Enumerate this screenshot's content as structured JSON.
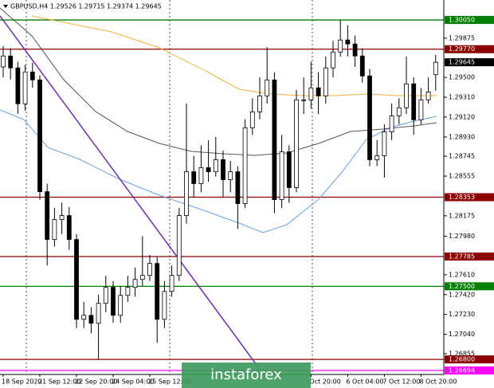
{
  "chart_data": {
    "type": "candlestick",
    "title": "GBPUSD,H4  1.29526  1.29715  1.29374  1.29645",
    "watermark": "instaforex",
    "ylim": [
      1.26656,
      1.30241
    ],
    "yticks": [
      1.29875,
      {
        "value": 1.295,
        "label": "1.29500"
      },
      {
        "value": 1.2931,
        "label": "1.29310"
      },
      {
        "value": 1.2912,
        "label": "1.29120"
      },
      {
        "value": 1.2893,
        "label": "1.28930"
      },
      1.28745,
      1.28555,
      1.28175,
      {
        "value": 1.2798,
        "label": "1.27980"
      },
      {
        "value": 1.2761,
        "label": "1.27610"
      },
      {
        "value": 1.2742,
        "label": "1.27420"
      },
      {
        "value": 1.2723,
        "label": "1.27230"
      },
      {
        "value": 1.2704,
        "label": "1.27040"
      },
      1.26855
    ],
    "levels": [
      {
        "value": 1.3005,
        "label": "1.30050",
        "color": "#008000"
      },
      {
        "value": 1.2977,
        "label": "1.29770",
        "color": "#8b0000"
      },
      {
        "value": 1.28353,
        "label": "1.28353",
        "color": "#8b0000"
      },
      {
        "value": 1.27785,
        "label": "1.27785",
        "color": "#8b0000"
      },
      {
        "value": 1.275,
        "label": "1.27500",
        "color": "#008000"
      },
      {
        "value": 1.268,
        "label": "1.26800",
        "color": "#8b0000"
      },
      {
        "value": 1.26694,
        "label": "1.26694",
        "color": "#ff00ff"
      }
    ],
    "last_label": "1.29645",
    "xlabels": [
      {
        "index": 0,
        "label": "18 Sep 2020"
      },
      {
        "index": 5,
        "label": "21 Sep 12:00"
      },
      {
        "index": 10,
        "label": "22 Sep 20:00"
      },
      {
        "index": 15,
        "label": "24 Sep 04:00"
      },
      {
        "index": 20,
        "label": "25 Sep 12:00"
      },
      {
        "index": 42,
        "label": "Oct 20:00"
      },
      {
        "index": 47,
        "label": "6 Oct 04:00"
      },
      {
        "index": 52,
        "label": "7 Oct 12:00"
      },
      {
        "index": 57,
        "label": "8 Oct 20:00"
      }
    ],
    "open": [
      1.296,
      1.29705,
      1.29591,
      1.29247,
      1.29552,
      1.29476,
      1.28406,
      1.27948,
      1.28139,
      1.28177,
      1.27948,
      1.27184,
      1.27222,
      1.27146,
      1.27337,
      1.2749,
      1.27222,
      1.27413,
      1.2749,
      1.27566,
      1.27604,
      1.27719,
      1.27184,
      1.27451,
      1.27604,
      1.28177,
      1.28597,
      1.28483,
      1.28636,
      1.28597,
      1.28712,
      1.28521,
      1.28597,
      1.28292,
      1.29018,
      1.2917,
      1.29323,
      1.29476,
      1.2833,
      1.28788,
      1.28445,
      1.29285,
      1.29285,
      1.294,
      1.29323,
      1.29591,
      1.29743,
      1.29858,
      1.2982,
      1.29705,
      1.29514,
      1.28712,
      1.2875,
      1.28979,
      1.29132,
      1.29209,
      1.29438,
      1.29094,
      1.29285,
      1.29526
    ],
    "high": [
      1.298,
      1.2978,
      1.2965,
      1.2962,
      1.2964,
      1.2952,
      1.2848,
      1.2825,
      1.283,
      1.2826,
      1.28,
      1.2735,
      1.273,
      1.2742,
      1.276,
      1.2755,
      1.275,
      1.276,
      1.2768,
      1.2798,
      1.278,
      1.2778,
      1.2755,
      1.277,
      1.2825,
      1.2925,
      1.2875,
      1.2885,
      1.289,
      1.2893,
      1.288,
      1.287,
      1.2865,
      1.291,
      1.293,
      1.295,
      1.2979,
      1.2955,
      1.2895,
      1.2885,
      1.2938,
      1.295,
      1.2965,
      1.2955,
      1.297,
      1.2985,
      1.3005,
      1.3,
      1.299,
      1.2978,
      1.2958,
      1.289,
      1.2905,
      1.2925,
      1.293,
      1.297,
      1.295,
      1.294,
      1.295,
      1.29715
    ],
    "low": [
      1.295,
      1.2948,
      1.2915,
      1.2918,
      1.294,
      1.2833,
      1.277,
      1.2788,
      1.28,
      1.2785,
      1.271,
      1.271,
      1.2705,
      1.268,
      1.2725,
      1.2715,
      1.2715,
      1.2735,
      1.274,
      1.275,
      1.2755,
      1.2696,
      1.271,
      1.274,
      1.2755,
      1.281,
      1.2835,
      1.284,
      1.285,
      1.2855,
      1.2835,
      1.284,
      1.2805,
      1.2825,
      1.2895,
      1.291,
      1.2925,
      1.282,
      1.2825,
      1.283,
      1.284,
      1.2915,
      1.292,
      1.2915,
      1.2925,
      1.295,
      1.297,
      1.297,
      1.296,
      1.2945,
      1.2865,
      1.2865,
      1.2854,
      1.289,
      1.2905,
      1.2915,
      1.2895,
      1.2905,
      1.2925,
      1.29374
    ],
    "close": [
      1.29705,
      1.29591,
      1.29247,
      1.29552,
      1.29476,
      1.28406,
      1.27948,
      1.28139,
      1.28177,
      1.27948,
      1.27184,
      1.27222,
      1.27146,
      1.27337,
      1.2749,
      1.27222,
      1.27413,
      1.2749,
      1.27566,
      1.27604,
      1.27719,
      1.27184,
      1.27451,
      1.27604,
      1.28177,
      1.28597,
      1.28483,
      1.28636,
      1.28597,
      1.28712,
      1.28521,
      1.28597,
      1.28292,
      1.29018,
      1.2917,
      1.29323,
      1.29476,
      1.2833,
      1.28788,
      1.28445,
      1.29285,
      1.29285,
      1.294,
      1.29323,
      1.29591,
      1.29743,
      1.29858,
      1.2982,
      1.29705,
      1.29514,
      1.28712,
      1.2875,
      1.28979,
      1.29132,
      1.29209,
      1.29438,
      1.29094,
      1.29285,
      1.29361,
      1.29645
    ],
    "up_color": "#ffffff",
    "down_color": "#000000"
  }
}
